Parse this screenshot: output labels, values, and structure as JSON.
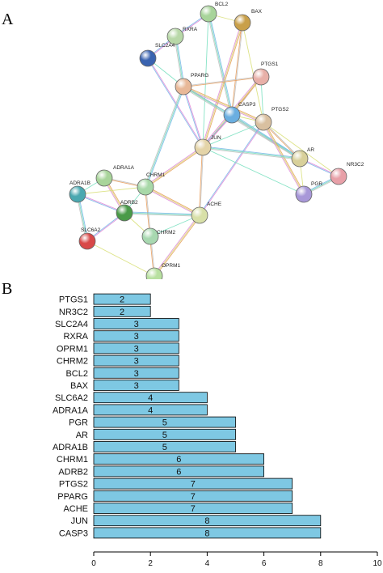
{
  "panel_a": {
    "letter": "A",
    "network": {
      "nodes": [
        {
          "id": "BCL2",
          "label": "BCL2",
          "color": "#a8d49a"
        },
        {
          "id": "BAX",
          "label": "BAX",
          "color": "#c9a04a"
        },
        {
          "id": "RXRA",
          "label": "RXRA",
          "color": "#b8d8a8"
        },
        {
          "id": "SLC2A4",
          "label": "SLC2A4",
          "color": "#3a63b0"
        },
        {
          "id": "PPARG",
          "label": "PPARG",
          "color": "#e8b898"
        },
        {
          "id": "PTGS1",
          "label": "PTGS1",
          "color": "#e8b0a8"
        },
        {
          "id": "CASP3",
          "label": "CASP3",
          "color": "#6aaee0"
        },
        {
          "id": "PTGS2",
          "label": "PTGS2",
          "color": "#d9c0a0"
        },
        {
          "id": "JUN",
          "label": "JUN",
          "color": "#e4d4a8"
        },
        {
          "id": "AR",
          "label": "AR",
          "color": "#d8d09a"
        },
        {
          "id": "NR3C2",
          "label": "NR3C2",
          "color": "#e8a0a8"
        },
        {
          "id": "PGR",
          "label": "PGR",
          "color": "#a898d8"
        },
        {
          "id": "ADRA1A",
          "label": "ADRA1A",
          "color": "#a8d49a"
        },
        {
          "id": "ADRA1B",
          "label": "ADRA1B",
          "color": "#4aa8b0"
        },
        {
          "id": "CHRM1",
          "label": "CHRM1",
          "color": "#a8d8a8"
        },
        {
          "id": "ADRB2",
          "label": "ADRB2",
          "color": "#4a9a48"
        },
        {
          "id": "CHRM2",
          "label": "CHRM2",
          "color": "#a8d8b0"
        },
        {
          "id": "ACHE",
          "label": "ACHE",
          "color": "#d8e0a8"
        },
        {
          "id": "SLC6A2",
          "label": "SLC6A2",
          "color": "#d84848"
        },
        {
          "id": "OPRM1",
          "label": "OPRM1",
          "color": "#b8e0a0"
        }
      ],
      "edges": [
        [
          "BCL2",
          "BAX"
        ],
        [
          "BCL2",
          "RXRA"
        ],
        [
          "BCL2",
          "CASP3"
        ],
        [
          "BCL2",
          "JUN"
        ],
        [
          "BAX",
          "CASP3"
        ],
        [
          "BAX",
          "JUN"
        ],
        [
          "BAX",
          "PTGS2"
        ],
        [
          "RXRA",
          "SLC2A4"
        ],
        [
          "RXRA",
          "PPARG"
        ],
        [
          "SLC2A4",
          "PPARG"
        ],
        [
          "PPARG",
          "PTGS1"
        ],
        [
          "PPARG",
          "PTGS2"
        ],
        [
          "PPARG",
          "CASP3"
        ],
        [
          "PPARG",
          "JUN"
        ],
        [
          "PPARG",
          "AR"
        ],
        [
          "PTGS1",
          "PTGS2"
        ],
        [
          "PTGS1",
          "CASP3"
        ],
        [
          "PTGS1",
          "JUN"
        ],
        [
          "CASP3",
          "PTGS2"
        ],
        [
          "CASP3",
          "JUN"
        ],
        [
          "CASP3",
          "AR"
        ],
        [
          "PTGS2",
          "JUN"
        ],
        [
          "PTGS2",
          "AR"
        ],
        [
          "PTGS2",
          "PGR"
        ],
        [
          "PTGS2",
          "NR3C2"
        ],
        [
          "PTGS2",
          "ACHE"
        ],
        [
          "JUN",
          "AR"
        ],
        [
          "JUN",
          "PGR"
        ],
        [
          "JUN",
          "ACHE"
        ],
        [
          "JUN",
          "CHRM1"
        ],
        [
          "AR",
          "PGR"
        ],
        [
          "AR",
          "NR3C2"
        ],
        [
          "PGR",
          "NR3C2"
        ],
        [
          "ADRA1A",
          "ADRA1B"
        ],
        [
          "ADRA1A",
          "CHRM1"
        ],
        [
          "ADRA1A",
          "ADRB2"
        ],
        [
          "ADRA1B",
          "CHRM1"
        ],
        [
          "ADRA1B",
          "ADRB2"
        ],
        [
          "ADRA1B",
          "SLC6A2"
        ],
        [
          "CHRM1",
          "ADRB2"
        ],
        [
          "CHRM1",
          "CHRM2"
        ],
        [
          "CHRM1",
          "ACHE"
        ],
        [
          "ADRB2",
          "CHRM2"
        ],
        [
          "ADRB2",
          "SLC6A2"
        ],
        [
          "ADRB2",
          "ACHE"
        ],
        [
          "CHRM2",
          "ACHE"
        ],
        [
          "CHRM2",
          "OPRM1"
        ],
        [
          "ACHE",
          "OPRM1"
        ],
        [
          "SLC6A2",
          "OPRM1"
        ],
        [
          "SLC2A4",
          "JUN"
        ],
        [
          "PPARG",
          "CHRM1"
        ]
      ]
    }
  },
  "panel_b": {
    "letter": "B"
  },
  "chart_data": {
    "type": "bar",
    "orientation": "horizontal",
    "categories": [
      "PTGS1",
      "NR3C2",
      "SLC2A4",
      "RXRA",
      "OPRM1",
      "CHRM2",
      "BCL2",
      "BAX",
      "SLC6A2",
      "ADRA1A",
      "PGR",
      "AR",
      "ADRA1B",
      "CHRM1",
      "ADRB2",
      "PTGS2",
      "PPARG",
      "ACHE",
      "JUN",
      "CASP3"
    ],
    "values": [
      2,
      2,
      3,
      3,
      3,
      3,
      3,
      3,
      4,
      4,
      5,
      5,
      5,
      6,
      6,
      7,
      7,
      7,
      8,
      8
    ],
    "data_labels": [
      "2",
      "2",
      "3",
      "3",
      "3",
      "3",
      "3",
      "3",
      "4",
      "4",
      "5",
      "5",
      "5",
      "6",
      "6",
      "7",
      "7",
      "7",
      "8",
      "8"
    ],
    "xlim": [
      0,
      10
    ],
    "xticks": [
      "0",
      "2",
      "4",
      "6",
      "8",
      "10"
    ],
    "bar_color": "#7ec8e3",
    "edge_color": "#000000",
    "grid": false
  }
}
